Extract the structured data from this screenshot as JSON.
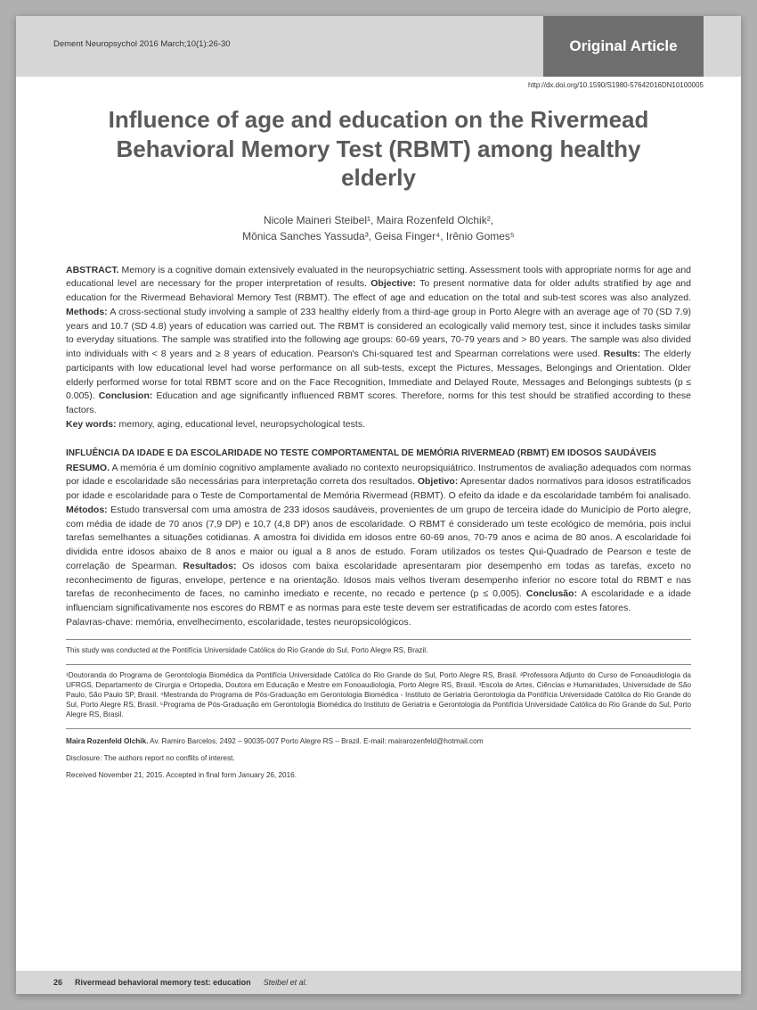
{
  "header": {
    "journal": "Dement Neuropsychol 2016 March;10(1):26-30",
    "article_type": "Original Article",
    "doi": "http://dx.doi.org/10.1590/S1980-57642016DN10100005"
  },
  "title": "Influence of age and education on the Rivermead Behavioral Memory Test (RBMT) among healthy elderly",
  "authors_line1": "Nicole Maineri Steibel¹, Maira Rozenfeld Olchik²,",
  "authors_line2": "Mônica Sanches Yassuda³, Geisa Finger⁴, Irênio Gomes⁵",
  "abstract": {
    "label": "ABSTRACT.",
    "text": " Memory is a cognitive domain extensively evaluated in the neuropsychiatric setting. Assessment tools with appropriate norms for age and educational level are necessary for the proper interpretation of results. ",
    "obj_label": "Objective:",
    "obj_text": " To present normative data for older adults stratified by age and education for the Rivermead Behavioral Memory Test (RBMT). The effect of age and education on the total and sub-test scores was also analyzed. ",
    "meth_label": "Methods:",
    "meth_text": " A cross-sectional study involving a sample of 233 healthy elderly from a third-age group in Porto Alegre with an average age of 70 (SD 7.9) years and 10.7 (SD 4.8) years of education was carried out. The RBMT is considered an ecologically valid memory test, since it includes tasks similar to everyday situations. The sample was stratified into the following age groups: 60-69 years, 70-79 years and > 80 years. The sample was also divided into individuals with < 8 years and ≥ 8 years of education. Pearson's Chi-squared test and Spearman correlations were used. ",
    "res_label": "Results:",
    "res_text": " The elderly participants with low educational level had worse performance on all sub-tests, except the Pictures, Messages, Belongings and Orientation. Older elderly performed worse for total RBMT score and on the Face Recognition, Immediate and Delayed Route, Messages and Belongings subtests (p ≤ 0.005). ",
    "conc_label": "Conclusion:",
    "conc_text": " Education and age significantly influenced RBMT scores. Therefore, norms for this test should be stratified according to these factors.",
    "kw_label": "Key words:",
    "kw_text": " memory, aging, educational level, neuropsychological tests."
  },
  "pt_title": "INFLUÊNCIA DA IDADE E DA ESCOLARIDADE NO TESTE COMPORTAMENTAL DE MEMÓRIA RIVERMEAD (RBMT) EM IDOSOS SAUDÁVEIS",
  "pt_abstract": {
    "label": "RESUMO.",
    "text": " A memória é um domínio cognitivo amplamente avaliado no contexto neuropsiquiátrico. Instrumentos de avaliação adequados com normas por idade e escolaridade são necessárias para interpretação correta dos resultados. ",
    "obj_label": "Objetivo:",
    "obj_text": " Apresentar dados normativos para idosos estratificados por idade e escolaridade para o Teste de Comportamental de Memória Rivermead (RBMT). O efeito da idade e da escolaridade também foi analisado. ",
    "meth_label": "Métodos:",
    "meth_text": " Estudo transversal com uma amostra de 233 idosos saudáveis, provenientes de um grupo de terceira idade do Município de Porto alegre, com média de idade de 70 anos (7,9 DP) e 10,7 (4,8 DP) anos de escolaridade. O RBMT é considerado um teste ecológico de memória, pois inclui tarefas semelhantes a situações cotidianas. A amostra foi dividida em idosos entre 60-69 anos, 70-79 anos e acima de 80 anos. A escolaridade foi dividida entre idosos abaixo de 8 anos e maior ou igual a 8 anos de estudo. Foram utilizados os testes Qui-Quadrado de Pearson e teste de correlação de Spearman. ",
    "res_label": "Resultados:",
    "res_text": " Os idosos com baixa escolaridade apresentaram pior desempenho em todas as tarefas, exceto no reconhecimento de figuras, envelope, pertence e na orientação. Idosos mais velhos tiveram desempenho inferior no escore total do RBMT e nas tarefas de reconhecimento de faces, no caminho imediato e recente, no recado e pertence (p ≤ 0,005). ",
    "conc_label": "Conclusão:",
    "conc_text": " A escolaridade e a idade influenciam significativamente nos escores do RBMT e as normas para este teste devem ser estratificadas de acordo com estes fatores.",
    "kw_label": "Palavras-chave:",
    "kw_text": " memória, envelhecimento, escolaridade, testes neuropsicológicos."
  },
  "study_note": "This study was conducted at the Pontifícia Universidade Católica do Rio Grande do Sul, Porto Alegre RS, Brazil.",
  "affiliations": "¹Doutoranda do Programa de Gerontologia Biomédica da Pontifícia Universidade Católica do Rio Grande do Sul, Porto Alegre RS, Brasil. ²Professora Adjunto do Curso de Fonoaudiologia da UFRGS, Departamento de Cirurgia e Ortopedia, Doutora em Educação e Mestre em Fonoaudiologia, Porto Alegre RS, Brasil. ³Escola de Artes, Ciências e Humanidades, Universidade de São Paulo, São Paulo SP, Brasil. ⁴Mestranda do Programa de Pós-Graduação em Gerontologia Biomédica - Instituto de Geriatria Gerontologia da Pontifícia Universidade Católica do Rio Grande do Sul, Porto Alegre RS, Brasil. ⁵Programa de Pós-Graduação em Gerontologia Biomédica do Instituto de Geriatria e Gerontologia da Pontifícia Universidade Católica do Rio Grande do Sul, Porto Alegre RS, Brasil.",
  "correspondence": {
    "name": "Maira Rozenfeld Olchik.",
    "text": " Av. Ramiro Barcelos, 2492 – 90035-007 Porto Alegre RS – Brazil. E-mail: mairarozenfeld@hotmail.com"
  },
  "disclosure": "Disclosure: The authors report no conflits of interest.",
  "dates": "Received November 21, 2015. Accepted in final form January 26, 2016.",
  "footer": {
    "page": "26",
    "running": "Rivermead behavioral memory test: education",
    "authors": "Steibel et al."
  }
}
